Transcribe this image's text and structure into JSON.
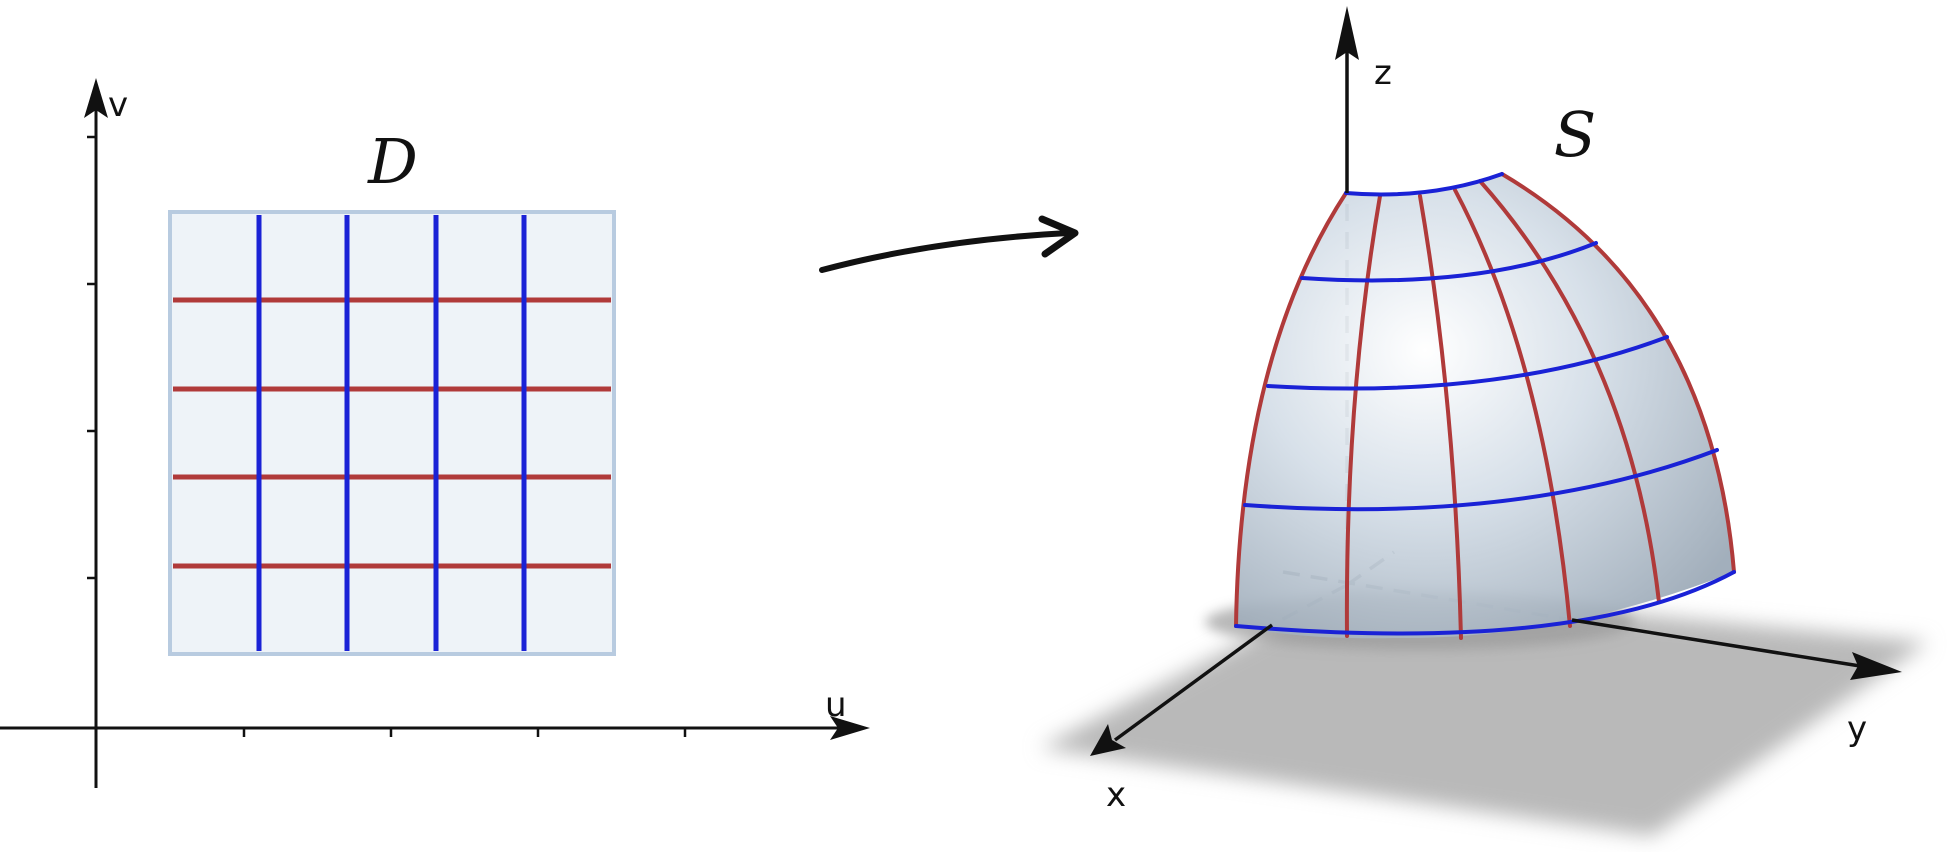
{
  "domain_plot": {
    "axis_u_label": "u",
    "axis_v_label": "v",
    "region_label": "D"
  },
  "surface_plot": {
    "axis_x_label": "x",
    "axis_y_label": "y",
    "axis_z_label": "z",
    "surface_label": "S"
  },
  "colors": {
    "u_curves": "#b03a3a",
    "v_curves": "#1a22d6",
    "region_fill": "#eef3f8",
    "region_border": "#b8cbe0",
    "floor_shadow": "#b9b9b9"
  }
}
